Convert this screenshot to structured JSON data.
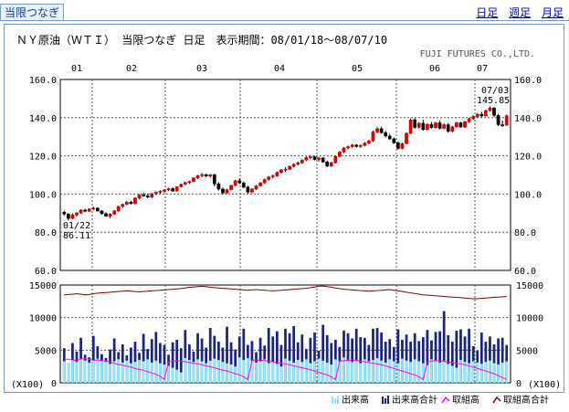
{
  "header": {
    "tab_label": "当限つなぎ",
    "links": [
      {
        "label": "日足",
        "selected": false
      },
      {
        "label": "週足",
        "selected": false
      },
      {
        "label": "月足",
        "selected": false
      }
    ]
  },
  "chart_data": {
    "type": "candlestick",
    "title": "ＮＹ原油（ＷＴＩ） 当限つなぎ 日足　表示期間：08/01/18～08/07/10",
    "source": "FUJI FUTURES CO.,LTD.",
    "months": [
      "01",
      "02",
      "03",
      "04",
      "05",
      "06",
      "07"
    ],
    "price_axis": {
      "ylim": [
        60,
        160
      ],
      "ticks": [
        "160.0",
        "140.0",
        "120.0",
        "100.0",
        "80.0",
        "60.0"
      ],
      "tick_values": [
        160,
        140,
        120,
        100,
        80,
        60
      ]
    },
    "volume_axis": {
      "ylim": [
        0,
        15000
      ],
      "ticks": [
        "15000",
        "10000",
        "5000",
        "0"
      ],
      "tick_values": [
        15000,
        10000,
        5000,
        0
      ],
      "unit": "(X100)"
    },
    "annotations": {
      "low": {
        "date": "01/22",
        "value": "86.11"
      },
      "high": {
        "date": "07/03",
        "value": "145.85"
      }
    },
    "candles": [
      [
        90.5,
        91.2,
        88.5,
        89.5
      ],
      [
        89.5,
        90.0,
        86.1,
        87.2
      ],
      [
        87.2,
        89.8,
        86.8,
        89.0
      ],
      [
        89.0,
        90.5,
        88.2,
        90.1
      ],
      [
        90.1,
        92.0,
        89.6,
        91.6
      ],
      [
        91.6,
        92.3,
        90.4,
        91.0
      ],
      [
        91.0,
        92.5,
        90.6,
        92.2
      ],
      [
        92.2,
        93.4,
        91.5,
        92.6
      ],
      [
        92.6,
        93.0,
        90.8,
        91.1
      ],
      [
        91.1,
        91.6,
        89.2,
        89.7
      ],
      [
        89.7,
        90.5,
        88.0,
        88.4
      ],
      [
        88.4,
        89.9,
        87.3,
        89.5
      ],
      [
        89.5,
        91.6,
        89.0,
        91.2
      ],
      [
        91.2,
        93.8,
        90.8,
        93.5
      ],
      [
        93.5,
        95.0,
        92.8,
        94.6
      ],
      [
        94.6,
        96.3,
        94.1,
        95.8
      ],
      [
        95.8,
        96.5,
        94.5,
        95.0
      ],
      [
        95.0,
        98.2,
        94.8,
        97.9
      ],
      [
        97.9,
        99.9,
        97.2,
        99.5
      ],
      [
        99.5,
        100.8,
        98.6,
        99.1
      ],
      [
        99.1,
        100.3,
        97.8,
        98.4
      ],
      [
        98.4,
        100.6,
        98.0,
        100.2
      ],
      [
        100.2,
        101.5,
        99.5,
        100.9
      ],
      [
        100.9,
        102.0,
        100.1,
        101.4
      ],
      [
        101.4,
        102.5,
        100.8,
        102.1
      ],
      [
        102.1,
        103.3,
        101.6,
        102.8
      ],
      [
        102.8,
        103.5,
        101.2,
        101.6
      ],
      [
        101.6,
        104.0,
        101.3,
        103.8
      ],
      [
        103.8,
        105.5,
        103.4,
        105.1
      ],
      [
        105.1,
        106.5,
        104.6,
        106.0
      ],
      [
        106.0,
        107.0,
        105.2,
        106.6
      ],
      [
        106.6,
        108.8,
        106.2,
        108.4
      ],
      [
        108.4,
        110.0,
        107.9,
        109.6
      ],
      [
        109.6,
        111.0,
        108.8,
        110.2
      ],
      [
        110.2,
        110.6,
        108.9,
        109.4
      ],
      [
        109.4,
        110.5,
        108.6,
        110.1
      ],
      [
        110.1,
        110.7,
        104.0,
        105.3
      ],
      [
        105.3,
        106.2,
        101.8,
        102.6
      ],
      [
        102.6,
        103.4,
        99.8,
        100.6
      ],
      [
        100.6,
        102.7,
        100.1,
        102.3
      ],
      [
        102.3,
        104.9,
        101.9,
        104.5
      ],
      [
        104.5,
        107.4,
        104.1,
        107.0
      ],
      [
        107.0,
        108.1,
        105.3,
        105.8
      ],
      [
        105.8,
        106.5,
        103.0,
        103.6
      ],
      [
        103.6,
        104.4,
        100.2,
        101.0
      ],
      [
        101.0,
        103.1,
        100.5,
        102.6
      ],
      [
        102.6,
        104.7,
        102.2,
        104.3
      ],
      [
        104.3,
        106.3,
        103.9,
        105.9
      ],
      [
        105.9,
        108.0,
        105.4,
        107.6
      ],
      [
        107.6,
        109.4,
        107.0,
        109.0
      ],
      [
        109.0,
        110.2,
        108.2,
        109.5
      ],
      [
        109.5,
        111.8,
        109.1,
        111.3
      ],
      [
        111.3,
        113.2,
        110.8,
        112.6
      ],
      [
        112.6,
        114.0,
        111.6,
        113.0
      ],
      [
        113.0,
        114.9,
        112.5,
        114.5
      ],
      [
        114.5,
        116.1,
        113.9,
        115.6
      ],
      [
        115.6,
        117.0,
        114.9,
        116.3
      ],
      [
        116.3,
        118.2,
        115.8,
        117.8
      ],
      [
        117.8,
        119.6,
        117.3,
        119.1
      ],
      [
        119.1,
        120.2,
        118.4,
        119.5
      ],
      [
        119.5,
        120.0,
        117.6,
        118.1
      ],
      [
        118.1,
        119.4,
        117.0,
        118.9
      ],
      [
        118.9,
        119.3,
        116.3,
        116.8
      ],
      [
        116.8,
        117.5,
        114.0,
        114.6
      ],
      [
        114.6,
        116.9,
        114.2,
        116.4
      ],
      [
        116.4,
        120.1,
        116.0,
        119.7
      ],
      [
        119.7,
        122.5,
        119.2,
        122.0
      ],
      [
        122.0,
        124.6,
        121.5,
        124.1
      ],
      [
        124.1,
        125.4,
        123.4,
        124.8
      ],
      [
        124.8,
        126.3,
        124.2,
        125.7
      ],
      [
        125.7,
        126.2,
        124.3,
        124.9
      ],
      [
        124.9,
        126.0,
        124.2,
        125.5
      ],
      [
        125.5,
        127.2,
        125.0,
        126.6
      ],
      [
        126.6,
        128.4,
        126.1,
        127.8
      ],
      [
        127.8,
        133.2,
        127.3,
        132.5
      ],
      [
        132.5,
        135.0,
        131.8,
        134.2
      ],
      [
        134.2,
        135.3,
        131.6,
        132.1
      ],
      [
        132.1,
        133.2,
        129.6,
        130.4
      ],
      [
        130.4,
        131.6,
        128.3,
        128.9
      ],
      [
        128.9,
        129.7,
        126.3,
        126.8
      ],
      [
        126.8,
        127.6,
        123.2,
        123.9
      ],
      [
        123.9,
        126.9,
        123.5,
        126.4
      ],
      [
        126.4,
        132.2,
        126.0,
        131.8
      ],
      [
        131.8,
        139.6,
        131.3,
        138.9
      ],
      [
        138.9,
        139.8,
        134.1,
        134.9
      ],
      [
        134.9,
        137.6,
        134.3,
        137.1
      ],
      [
        137.1,
        138.9,
        133.2,
        133.8
      ],
      [
        133.8,
        137.0,
        133.3,
        136.5
      ],
      [
        136.5,
        137.8,
        134.2,
        134.8
      ],
      [
        134.8,
        137.7,
        134.3,
        137.3
      ],
      [
        137.3,
        138.4,
        133.8,
        134.4
      ],
      [
        134.4,
        136.9,
        133.9,
        136.3
      ],
      [
        136.3,
        137.2,
        132.1,
        132.8
      ],
      [
        132.8,
        135.7,
        132.4,
        135.2
      ],
      [
        135.2,
        137.8,
        134.7,
        137.3
      ],
      [
        137.3,
        137.9,
        134.6,
        135.1
      ],
      [
        135.1,
        138.3,
        134.6,
        137.9
      ],
      [
        137.9,
        139.9,
        137.3,
        139.4
      ],
      [
        139.4,
        141.3,
        138.9,
        140.6
      ],
      [
        140.6,
        142.4,
        140.0,
        141.8
      ],
      [
        141.8,
        143.1,
        140.2,
        140.9
      ],
      [
        140.9,
        144.2,
        140.6,
        143.7
      ],
      [
        143.7,
        145.85,
        143.2,
        145.1
      ],
      [
        145.1,
        145.6,
        140.3,
        141.2
      ],
      [
        141.2,
        141.9,
        135.6,
        136.3
      ],
      [
        136.3,
        138.5,
        135.0,
        136.1
      ],
      [
        136.1,
        141.6,
        135.7,
        141.0
      ]
    ],
    "series": [
      {
        "name": "出来高",
        "color": "#8fe6f5",
        "values": [
          3300,
          3000,
          3500,
          3200,
          3600,
          3400,
          3100,
          3500,
          3700,
          3400,
          3200,
          2900,
          3300,
          3600,
          3100,
          3400,
          3000,
          3200,
          3500,
          3300,
          3600,
          3100,
          3400,
          3000,
          2800,
          2600,
          2300,
          2000,
          1600,
          3800,
          3500,
          3200,
          3600,
          3300,
          3000,
          3400,
          3700,
          3500,
          3200,
          3000,
          2800,
          2500,
          3900,
          3500,
          3800,
          3400,
          3100,
          3300,
          3600,
          3000,
          3200,
          2900,
          2500,
          3700,
          3400,
          3100,
          3500,
          3200,
          3600,
          3000,
          3300,
          3700,
          3400,
          3100,
          2800,
          3600,
          3300,
          3900,
          3500,
          3200,
          3400,
          3000,
          3600,
          3300,
          3500,
          3800,
          3400,
          3100,
          3600,
          3300,
          3000,
          3700,
          3400,
          3200,
          3600,
          3300,
          3000,
          2700,
          3600,
          3400,
          3100,
          3300,
          2900,
          2600,
          2300,
          3500,
          3200,
          3000,
          3300,
          3100,
          2900,
          3200,
          3400,
          3000,
          2800,
          3100,
          3300
        ]
      },
      {
        "name": "出来高合計",
        "color": "#1a237e",
        "values": [
          5300,
          3000,
          6100,
          4800,
          6900,
          4300,
          3900,
          7200,
          5600,
          4400,
          3800,
          5100,
          6800,
          4700,
          5900,
          4200,
          5400,
          6300,
          4600,
          7500,
          5200,
          6700,
          7800,
          6100,
          5800,
          4300,
          6200,
          6600,
          5300,
          8100,
          5900,
          4800,
          7600,
          6800,
          5400,
          8400,
          7200,
          6300,
          5400,
          8600,
          6200,
          5100,
          7100,
          8300,
          5800,
          6400,
          4700,
          6900,
          5700,
          8400,
          7100,
          7900,
          5800,
          8300,
          7600,
          8700,
          6200,
          7400,
          5200,
          6900,
          7700,
          4900,
          8900,
          7300,
          6100,
          6600,
          5500,
          8000,
          7600,
          6800,
          8300,
          7000,
          6900,
          5800,
          8300,
          8400,
          7700,
          6300,
          6700,
          5500,
          8200,
          6600,
          7400,
          6300,
          7600,
          6400,
          7000,
          8100,
          6500,
          7800,
          7900,
          11000,
          7300,
          6300,
          8000,
          8200,
          7100,
          8300,
          5600,
          4900,
          7700,
          6300,
          7100,
          5900,
          6800,
          6900,
          5800
        ]
      },
      {
        "name": "取組高",
        "color": "#ff00ff",
        "values": [
          3600,
          3620,
          3500,
          3400,
          3700,
          3650,
          3600,
          3450,
          3500,
          3400,
          3350,
          3200,
          3000,
          2800,
          2700,
          2550,
          2400,
          2200,
          2050,
          1900,
          1700,
          1500,
          1300,
          1000,
          500,
          3200,
          3300,
          3400,
          3300,
          3250,
          3100,
          3000,
          2900,
          2750,
          2600,
          2450,
          2300,
          2100,
          1950,
          1800,
          1600,
          1400,
          1200,
          900,
          500,
          3400,
          3500,
          3450,
          3400,
          3300,
          3200,
          3100,
          3000,
          2900,
          2750,
          2600,
          2450,
          2300,
          2150,
          2000,
          1800,
          1600,
          1400,
          1200,
          900,
          500,
          3300,
          3400,
          3450,
          3500,
          3400,
          3300,
          3200,
          3100,
          3000,
          2900,
          2750,
          2600,
          2400,
          2200,
          2000,
          1800,
          1600,
          1400,
          1200,
          900,
          500,
          3200,
          3300,
          3400,
          3350,
          3300,
          3200,
          3100,
          3000,
          2900,
          2750,
          2600,
          2400,
          2200,
          2000,
          1800,
          1600,
          1400,
          1100,
          800,
          500
        ]
      },
      {
        "name": "取組高合計",
        "color": "#800000",
        "values": [
          13500,
          13550,
          13600,
          13650,
          13600,
          13500,
          13550,
          13650,
          13750,
          13800,
          13850,
          13900,
          13950,
          14000,
          14050,
          14100,
          14050,
          14000,
          13950,
          14000,
          14050,
          14100,
          14150,
          14200,
          14250,
          14300,
          14350,
          14400,
          14450,
          14550,
          14650,
          14700,
          14750,
          14800,
          14750,
          14650,
          14600,
          14550,
          14500,
          14450,
          14400,
          14350,
          14300,
          14250,
          14200,
          14250,
          14300,
          14250,
          14200,
          14150,
          14100,
          14150,
          14200,
          14250,
          14300,
          14350,
          14400,
          14450,
          14500,
          14600,
          14700,
          14800,
          14850,
          14750,
          14650,
          14550,
          14450,
          14350,
          14300,
          14250,
          14200,
          14150,
          14100,
          14050,
          14100,
          14150,
          14200,
          14250,
          14300,
          14200,
          14100,
          14000,
          13900,
          13800,
          13700,
          13600,
          13500,
          13450,
          13400,
          13350,
          13300,
          13250,
          13200,
          13150,
          13100,
          13050,
          13000,
          12950,
          12900,
          12900,
          12950,
          13000,
          13050,
          13100,
          13150,
          13200,
          13250
        ]
      }
    ],
    "legend": {
      "position": "bottom-right",
      "items": [
        "出来高",
        "出来高合計",
        "取組高",
        "取組高合計"
      ]
    }
  }
}
